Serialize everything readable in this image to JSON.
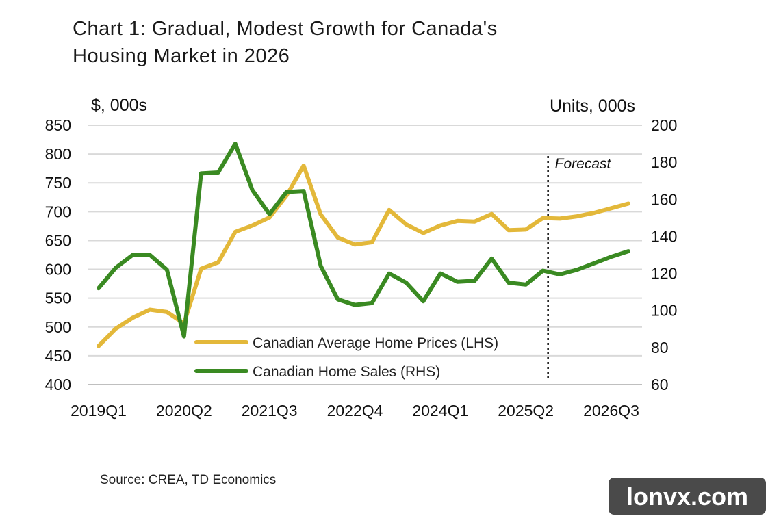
{
  "watermark": "lonvx.com",
  "chart_data": {
    "type": "line",
    "title_lines": [
      "Chart 1: Gradual, Modest Growth for Canada's",
      "Housing Market in 2026"
    ],
    "left_unit": "$, 000s",
    "right_unit": "Units, 000s",
    "source": "Source: CREA, TD Economics",
    "annotation": "Forecast",
    "forecast_after": "2025Q3",
    "grid": "horizontal",
    "legend_position": "bottom-center",
    "x": [
      "2019Q1",
      "2019Q2",
      "2019Q3",
      "2019Q4",
      "2020Q1",
      "2020Q2",
      "2020Q3",
      "2020Q4",
      "2021Q1",
      "2021Q2",
      "2021Q3",
      "2021Q4",
      "2022Q1",
      "2022Q2",
      "2022Q3",
      "2022Q4",
      "2023Q1",
      "2023Q2",
      "2023Q3",
      "2023Q4",
      "2024Q1",
      "2024Q2",
      "2024Q3",
      "2024Q4",
      "2025Q1",
      "2025Q2",
      "2025Q3",
      "2025Q4",
      "2026Q1",
      "2026Q2",
      "2026Q3",
      "2026Q4"
    ],
    "x_tick_labels": [
      "2019Q1",
      "2020Q2",
      "2021Q3",
      "2022Q4",
      "2024Q1",
      "2025Q2",
      "2026Q3"
    ],
    "y_left": {
      "ticks": [
        "850",
        "800",
        "750",
        "700",
        "650",
        "600",
        "550",
        "500",
        "450",
        "400"
      ],
      "range": [
        400,
        850
      ]
    },
    "y_right": {
      "ticks": [
        "200",
        "180",
        "160",
        "140",
        "120",
        "100",
        "80",
        "60"
      ],
      "range": [
        60,
        200
      ]
    },
    "series": [
      {
        "name": "Canadian Average Home Prices (LHS)",
        "axis": "left",
        "color": "#e3b83a",
        "values": [
          467,
          497,
          516,
          530,
          526,
          506,
          601,
          612,
          665,
          676,
          690,
          728,
          780,
          695,
          655,
          643,
          647,
          703,
          678,
          663,
          676,
          684,
          683,
          696,
          668,
          669,
          689,
          688,
          692,
          698,
          706,
          714
        ]
      },
      {
        "name": "Canadian Home Sales (RHS)",
        "axis": "right",
        "color": "#3a8a22",
        "values": [
          112,
          123,
          130,
          130,
          122,
          86,
          174,
          174.5,
          190,
          165,
          152,
          164,
          164.5,
          124,
          106,
          103,
          104,
          120,
          115,
          105,
          120,
          115.5,
          116,
          128,
          115,
          114,
          121.5,
          119.5,
          122,
          125.5,
          129,
          132
        ]
      }
    ]
  }
}
